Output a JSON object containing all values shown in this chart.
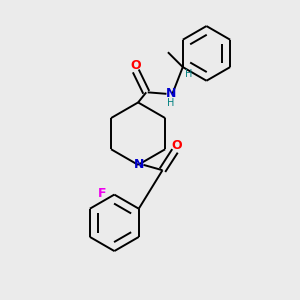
{
  "background_color": "#ebebeb",
  "bond_color": "#000000",
  "atom_colors": {
    "O": "#ff0000",
    "N": "#0000cc",
    "F": "#ee00ee",
    "H": "#008080",
    "C": "#000000"
  },
  "figsize": [
    3.0,
    3.0
  ],
  "dpi": 100
}
